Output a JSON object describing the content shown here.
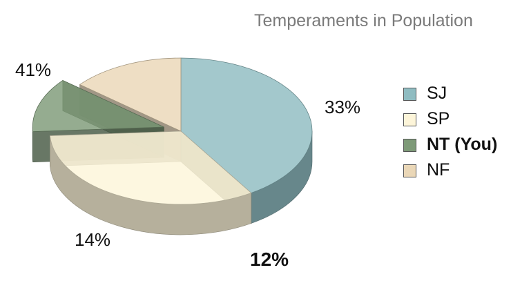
{
  "chart_data": {
    "type": "pie",
    "title": "Temperaments in Population",
    "slices": [
      {
        "label": "SJ",
        "value": 41,
        "display": "41%",
        "color": "#8fbcc1",
        "highlight": false
      },
      {
        "label": "SP",
        "value": 33,
        "display": "33%",
        "color": "#fdf5d9",
        "highlight": false
      },
      {
        "label": "NT (You)",
        "value": 12,
        "display": "12%",
        "color": "#7e9a78",
        "highlight": true
      },
      {
        "label": "NF",
        "value": 14,
        "display": "14%",
        "color": "#ead7b7",
        "highlight": false
      }
    ],
    "legend_position": "right",
    "three_d": true,
    "exploded": "NT (You)"
  }
}
